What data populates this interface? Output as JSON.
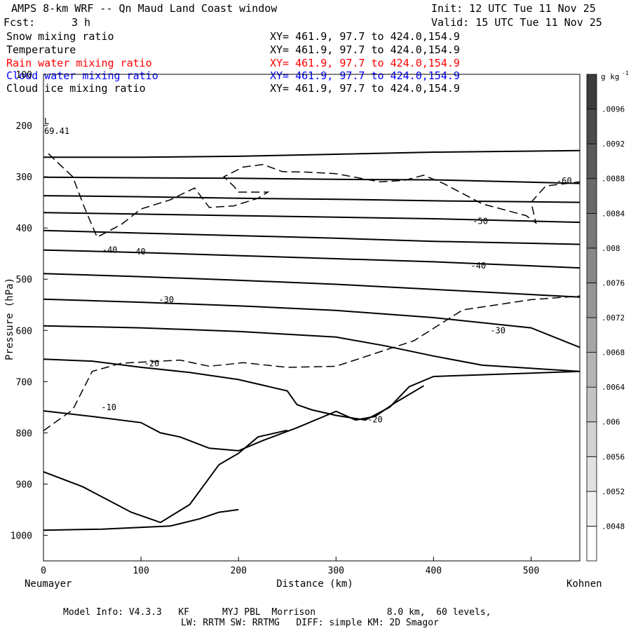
{
  "header": {
    "title": "AMPS 8-km WRF -- Qn Maud Land Coast window",
    "init": "Init: 12 UTC Tue 11 Nov 25",
    "fcst_label": "Fcst:",
    "fcst_value": "3 h",
    "valid": "Valid: 15 UTC Tue 11 Nov 25"
  },
  "fields": [
    {
      "name": "Snow mixing ratio",
      "xy": "XY= 461.9, 97.7 to 424.0,154.9",
      "color": "#000000"
    },
    {
      "name": "Temperature",
      "xy": "XY= 461.9, 97.7 to 424.0,154.9",
      "color": "#000000"
    },
    {
      "name": "Rain water mixing ratio",
      "xy": "XY= 461.9, 97.7 to 424.0,154.9",
      "color": "#ff0000"
    },
    {
      "name": "Cloud water mixing ratio",
      "xy": "XY= 461.9, 97.7 to 424.0,154.9",
      "color": "#0000ff"
    },
    {
      "name": "Cloud ice mixing ratio",
      "xy": "XY= 461.9, 97.7 to 424.0,154.9",
      "color": "#000000"
    }
  ],
  "footer": {
    "line1": "Model Info: V4.3.3   KF      MYJ PBL  Morrison             8.0 km,  60 levels,",
    "line2": "LW: RRTM SW: RRTMG   DIFF: simple KM: 2D Smagor"
  },
  "chart_data": {
    "type": "line",
    "title": "AMPS 8-km WRF -- Qn Maud Land Coast window",
    "xlabel": "Distance (km)",
    "ylabel": "Pressure (hPa)",
    "xlim": [
      0,
      550
    ],
    "ylim": [
      1050,
      100
    ],
    "xticks": [
      0,
      100,
      200,
      300,
      400,
      500
    ],
    "yticks": [
      100,
      200,
      300,
      400,
      500,
      600,
      700,
      800,
      900,
      1000
    ],
    "x_endpoints": {
      "left": "Neumayer",
      "right": "Kohnen"
    },
    "low_marker": {
      "label": "L",
      "value": "69.41",
      "x": 0,
      "p": 175
    },
    "colorbar": {
      "unit": "g kg",
      "unit_exp": "-1",
      "levels": [
        ".0048",
        ".0052",
        ".0056",
        ".006",
        ".0064",
        ".0068",
        ".0072",
        ".0076",
        ".008",
        ".0084",
        ".0088",
        ".0092",
        ".0096"
      ]
    },
    "isotherms": [
      {
        "points": [
          [
            0,
            262
          ],
          [
            100,
            262
          ],
          [
            200,
            260
          ],
          [
            300,
            256
          ],
          [
            400,
            252
          ],
          [
            550,
            249
          ]
        ]
      },
      {
        "points": [
          [
            0,
            301
          ],
          [
            100,
            302
          ],
          [
            200,
            303
          ],
          [
            300,
            305
          ],
          [
            400,
            306
          ],
          [
            550,
            313
          ]
        ],
        "labels": [
          {
            "text": "-60",
            "x": 534,
            "p": 308
          }
        ]
      },
      {
        "points": [
          [
            0,
            337
          ],
          [
            100,
            339
          ],
          [
            200,
            342
          ],
          [
            300,
            344
          ],
          [
            400,
            347
          ],
          [
            550,
            350
          ]
        ]
      },
      {
        "points": [
          [
            0,
            370
          ],
          [
            100,
            373
          ],
          [
            200,
            376
          ],
          [
            300,
            379
          ],
          [
            400,
            382
          ],
          [
            550,
            389
          ]
        ],
        "labels": [
          {
            "text": "-50",
            "x": 448,
            "p": 387
          }
        ]
      },
      {
        "points": [
          [
            0,
            405
          ],
          [
            100,
            410
          ],
          [
            200,
            415
          ],
          [
            300,
            420
          ],
          [
            400,
            426
          ],
          [
            550,
            432
          ]
        ]
      },
      {
        "points": [
          [
            0,
            443
          ],
          [
            100,
            448
          ],
          [
            200,
            454
          ],
          [
            300,
            460
          ],
          [
            400,
            466
          ],
          [
            550,
            478
          ]
        ],
        "labels": [
          {
            "text": "-40",
            "x": 68,
            "p": 443
          },
          {
            "text": "-40",
            "x": 97,
            "p": 446
          },
          {
            "text": "-40",
            "x": 446,
            "p": 474
          }
        ]
      },
      {
        "points": [
          [
            0,
            489
          ],
          [
            100,
            495
          ],
          [
            200,
            502
          ],
          [
            300,
            510
          ],
          [
            400,
            520
          ],
          [
            550,
            535
          ]
        ]
      },
      {
        "points": [
          [
            0,
            539
          ],
          [
            100,
            545
          ],
          [
            200,
            552
          ],
          [
            300,
            561
          ],
          [
            400,
            575
          ],
          [
            500,
            595
          ],
          [
            550,
            633
          ]
        ],
        "labels": [
          {
            "text": "-30",
            "x": 126,
            "p": 540
          },
          {
            "text": "-30",
            "x": 466,
            "p": 600
          }
        ]
      },
      {
        "points": [
          [
            0,
            591
          ],
          [
            100,
            595
          ],
          [
            200,
            602
          ],
          [
            300,
            613
          ],
          [
            350,
            630
          ],
          [
            400,
            650
          ],
          [
            450,
            668
          ],
          [
            550,
            680
          ]
        ],
        "labels": [
          {
            "text": "-20",
            "x": 111,
            "p": 665
          }
        ]
      },
      {
        "points": [
          [
            0,
            656
          ],
          [
            50,
            660
          ],
          [
            100,
            672
          ],
          [
            150,
            682
          ],
          [
            200,
            696
          ],
          [
            250,
            718
          ],
          [
            260,
            745
          ],
          [
            275,
            755
          ],
          [
            300,
            766
          ],
          [
            330,
            775
          ],
          [
            355,
            750
          ],
          [
            375,
            710
          ],
          [
            400,
            690
          ],
          [
            550,
            680
          ]
        ],
        "labels": [
          {
            "text": "-20",
            "x": 340,
            "p": 774
          }
        ]
      },
      {
        "points": [
          [
            0,
            757
          ],
          [
            50,
            768
          ],
          [
            100,
            780
          ],
          [
            120,
            800
          ],
          [
            140,
            808
          ],
          [
            170,
            830
          ],
          [
            200,
            835
          ],
          [
            225,
            815
          ],
          [
            260,
            790
          ],
          [
            285,
            770
          ],
          [
            300,
            758
          ],
          [
            320,
            775
          ],
          [
            340,
            768
          ],
          [
            360,
            742
          ],
          [
            390,
            708
          ]
        ]
      },
      {
        "points": [
          [
            0,
            876
          ],
          [
            40,
            905
          ],
          [
            90,
            955
          ],
          [
            120,
            975
          ],
          [
            150,
            940
          ],
          [
            180,
            862
          ],
          [
            200,
            840
          ],
          [
            220,
            808
          ],
          [
            250,
            795
          ]
        ]
      },
      {
        "points": [
          [
            0,
            990
          ],
          [
            60,
            988
          ],
          [
            130,
            982
          ],
          [
            160,
            968
          ],
          [
            180,
            955
          ],
          [
            200,
            950
          ]
        ],
        "labels": [
          {
            "text": "-10",
            "x": 67,
            "p": 750
          }
        ]
      }
    ],
    "dashed_contours": [
      {
        "points": [
          [
            5,
            255
          ],
          [
            30,
            300
          ],
          [
            42,
            360
          ],
          [
            55,
            418
          ],
          [
            80,
            393
          ],
          [
            100,
            363
          ],
          [
            130,
            345
          ],
          [
            155,
            322
          ],
          [
            170,
            360
          ],
          [
            195,
            357
          ],
          [
            220,
            342
          ],
          [
            230,
            330
          ],
          [
            200,
            330
          ],
          [
            195,
            318
          ],
          [
            185,
            300
          ],
          [
            205,
            281
          ],
          [
            225,
            276
          ],
          [
            245,
            290
          ],
          [
            270,
            291
          ],
          [
            300,
            294
          ],
          [
            345,
            310
          ],
          [
            370,
            307
          ],
          [
            390,
            297
          ],
          [
            410,
            313
          ],
          [
            450,
            353
          ],
          [
            495,
            376
          ],
          [
            505,
            390
          ],
          [
            500,
            350
          ],
          [
            515,
            318
          ],
          [
            550,
            310
          ]
        ]
      },
      {
        "points": [
          [
            0,
            796
          ],
          [
            30,
            755
          ],
          [
            50,
            680
          ],
          [
            80,
            664
          ],
          [
            140,
            658
          ],
          [
            170,
            670
          ],
          [
            205,
            663
          ],
          [
            250,
            672
          ],
          [
            300,
            670
          ],
          [
            380,
            620
          ],
          [
            430,
            560
          ],
          [
            500,
            540
          ],
          [
            550,
            533
          ]
        ]
      }
    ]
  }
}
